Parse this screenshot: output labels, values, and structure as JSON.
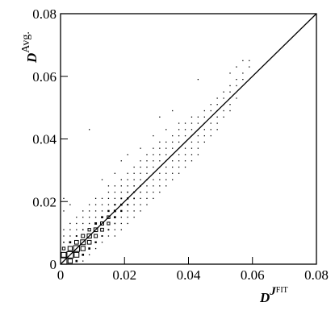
{
  "chart_data": {
    "type": "box2d",
    "x_label": "D",
    "x_label_sup": "J",
    "x_label_sup_sup": "FIT",
    "y_label": "D",
    "y_label_sup": "Avg.",
    "xlim": [
      0,
      0.08
    ],
    "ylim": [
      0,
      0.08
    ],
    "bin_width": 0.002,
    "xticks": [
      0,
      0.02,
      0.04,
      0.06,
      0.08
    ],
    "yticks": [
      0,
      0.02,
      0.04,
      0.06,
      0.08
    ],
    "diagonal": true,
    "color": "#000000",
    "cells": [
      [
        0.001,
        0.001,
        60
      ],
      [
        0.001,
        0.003,
        45
      ],
      [
        0.001,
        0.005,
        25
      ],
      [
        0.001,
        0.007,
        12
      ],
      [
        0.001,
        0.009,
        5
      ],
      [
        0.001,
        0.011,
        2
      ],
      [
        0.001,
        0.017,
        1
      ],
      [
        0.001,
        0.021,
        1
      ],
      [
        0.003,
        0.001,
        40
      ],
      [
        0.003,
        0.003,
        60
      ],
      [
        0.003,
        0.005,
        40
      ],
      [
        0.003,
        0.007,
        20
      ],
      [
        0.003,
        0.009,
        8
      ],
      [
        0.003,
        0.011,
        3
      ],
      [
        0.003,
        0.013,
        1
      ],
      [
        0.003,
        0.019,
        1
      ],
      [
        0.005,
        0.001,
        20
      ],
      [
        0.005,
        0.003,
        45
      ],
      [
        0.005,
        0.005,
        55
      ],
      [
        0.005,
        0.007,
        35
      ],
      [
        0.005,
        0.009,
        15
      ],
      [
        0.005,
        0.011,
        6
      ],
      [
        0.005,
        0.013,
        2
      ],
      [
        0.005,
        0.015,
        1
      ],
      [
        0.007,
        0.001,
        5
      ],
      [
        0.007,
        0.003,
        20
      ],
      [
        0.007,
        0.005,
        40
      ],
      [
        0.007,
        0.007,
        45
      ],
      [
        0.007,
        0.009,
        30
      ],
      [
        0.007,
        0.011,
        12
      ],
      [
        0.007,
        0.013,
        5
      ],
      [
        0.007,
        0.015,
        2
      ],
      [
        0.007,
        0.017,
        1
      ],
      [
        0.009,
        0.003,
        8
      ],
      [
        0.009,
        0.005,
        20
      ],
      [
        0.009,
        0.007,
        35
      ],
      [
        0.009,
        0.009,
        40
      ],
      [
        0.009,
        0.011,
        25
      ],
      [
        0.009,
        0.013,
        10
      ],
      [
        0.009,
        0.015,
        4
      ],
      [
        0.009,
        0.017,
        2
      ],
      [
        0.009,
        0.019,
        1
      ],
      [
        0.009,
        0.043,
        1
      ],
      [
        0.011,
        0.005,
        8
      ],
      [
        0.011,
        0.007,
        18
      ],
      [
        0.011,
        0.009,
        30
      ],
      [
        0.011,
        0.011,
        35
      ],
      [
        0.011,
        0.013,
        22
      ],
      [
        0.011,
        0.015,
        10
      ],
      [
        0.011,
        0.017,
        4
      ],
      [
        0.011,
        0.019,
        2
      ],
      [
        0.011,
        0.021,
        1
      ],
      [
        0.013,
        0.007,
        8
      ],
      [
        0.013,
        0.009,
        15
      ],
      [
        0.013,
        0.011,
        28
      ],
      [
        0.013,
        0.013,
        30
      ],
      [
        0.013,
        0.015,
        20
      ],
      [
        0.013,
        0.017,
        8
      ],
      [
        0.013,
        0.019,
        3
      ],
      [
        0.013,
        0.021,
        1
      ],
      [
        0.013,
        0.027,
        1
      ],
      [
        0.015,
        0.009,
        6
      ],
      [
        0.015,
        0.011,
        14
      ],
      [
        0.015,
        0.013,
        24
      ],
      [
        0.015,
        0.015,
        26
      ],
      [
        0.015,
        0.017,
        18
      ],
      [
        0.015,
        0.019,
        8
      ],
      [
        0.015,
        0.021,
        3
      ],
      [
        0.015,
        0.023,
        2
      ],
      [
        0.015,
        0.025,
        1
      ],
      [
        0.017,
        0.009,
        2
      ],
      [
        0.017,
        0.011,
        6
      ],
      [
        0.017,
        0.013,
        12
      ],
      [
        0.017,
        0.015,
        20
      ],
      [
        0.017,
        0.017,
        22
      ],
      [
        0.017,
        0.019,
        16
      ],
      [
        0.017,
        0.021,
        8
      ],
      [
        0.017,
        0.023,
        3
      ],
      [
        0.017,
        0.025,
        1
      ],
      [
        0.017,
        0.029,
        1
      ],
      [
        0.019,
        0.011,
        2
      ],
      [
        0.019,
        0.013,
        5
      ],
      [
        0.019,
        0.015,
        10
      ],
      [
        0.019,
        0.017,
        18
      ],
      [
        0.019,
        0.019,
        20
      ],
      [
        0.019,
        0.021,
        14
      ],
      [
        0.019,
        0.023,
        7
      ],
      [
        0.019,
        0.025,
        3
      ],
      [
        0.019,
        0.027,
        1
      ],
      [
        0.019,
        0.033,
        1
      ],
      [
        0.021,
        0.013,
        2
      ],
      [
        0.021,
        0.015,
        5
      ],
      [
        0.021,
        0.017,
        9
      ],
      [
        0.021,
        0.019,
        15
      ],
      [
        0.021,
        0.021,
        18
      ],
      [
        0.021,
        0.023,
        12
      ],
      [
        0.021,
        0.025,
        6
      ],
      [
        0.021,
        0.027,
        3
      ],
      [
        0.021,
        0.029,
        1
      ],
      [
        0.021,
        0.035,
        1
      ],
      [
        0.023,
        0.015,
        2
      ],
      [
        0.023,
        0.017,
        4
      ],
      [
        0.023,
        0.019,
        8
      ],
      [
        0.023,
        0.021,
        13
      ],
      [
        0.023,
        0.023,
        15
      ],
      [
        0.023,
        0.025,
        11
      ],
      [
        0.023,
        0.027,
        5
      ],
      [
        0.023,
        0.029,
        2
      ],
      [
        0.023,
        0.031,
        1
      ],
      [
        0.025,
        0.017,
        2
      ],
      [
        0.025,
        0.019,
        4
      ],
      [
        0.025,
        0.021,
        7
      ],
      [
        0.025,
        0.023,
        11
      ],
      [
        0.025,
        0.025,
        13
      ],
      [
        0.025,
        0.027,
        9
      ],
      [
        0.025,
        0.029,
        5
      ],
      [
        0.025,
        0.031,
        2
      ],
      [
        0.025,
        0.033,
        1
      ],
      [
        0.025,
        0.037,
        1
      ],
      [
        0.027,
        0.019,
        2
      ],
      [
        0.027,
        0.021,
        3
      ],
      [
        0.027,
        0.023,
        6
      ],
      [
        0.027,
        0.025,
        9
      ],
      [
        0.027,
        0.027,
        11
      ],
      [
        0.027,
        0.029,
        8
      ],
      [
        0.027,
        0.031,
        4
      ],
      [
        0.027,
        0.033,
        2
      ],
      [
        0.027,
        0.035,
        1
      ],
      [
        0.029,
        0.021,
        2
      ],
      [
        0.029,
        0.023,
        3
      ],
      [
        0.029,
        0.025,
        5
      ],
      [
        0.029,
        0.027,
        8
      ],
      [
        0.029,
        0.029,
        10
      ],
      [
        0.029,
        0.031,
        7
      ],
      [
        0.029,
        0.033,
        4
      ],
      [
        0.029,
        0.035,
        2
      ],
      [
        0.029,
        0.037,
        1
      ],
      [
        0.029,
        0.041,
        1
      ],
      [
        0.031,
        0.023,
        2
      ],
      [
        0.031,
        0.025,
        3
      ],
      [
        0.031,
        0.027,
        5
      ],
      [
        0.031,
        0.029,
        7
      ],
      [
        0.031,
        0.031,
        8
      ],
      [
        0.031,
        0.033,
        6
      ],
      [
        0.031,
        0.035,
        3
      ],
      [
        0.031,
        0.037,
        2
      ],
      [
        0.031,
        0.039,
        1
      ],
      [
        0.031,
        0.047,
        1
      ],
      [
        0.033,
        0.025,
        2
      ],
      [
        0.033,
        0.027,
        3
      ],
      [
        0.033,
        0.029,
        4
      ],
      [
        0.033,
        0.031,
        6
      ],
      [
        0.033,
        0.033,
        7
      ],
      [
        0.033,
        0.035,
        5
      ],
      [
        0.033,
        0.037,
        3
      ],
      [
        0.033,
        0.039,
        1
      ],
      [
        0.033,
        0.043,
        1
      ],
      [
        0.035,
        0.027,
        1
      ],
      [
        0.035,
        0.029,
        3
      ],
      [
        0.035,
        0.031,
        4
      ],
      [
        0.035,
        0.033,
        5
      ],
      [
        0.035,
        0.035,
        6
      ],
      [
        0.035,
        0.037,
        4
      ],
      [
        0.035,
        0.039,
        2
      ],
      [
        0.035,
        0.041,
        1
      ],
      [
        0.035,
        0.049,
        1
      ],
      [
        0.037,
        0.029,
        1
      ],
      [
        0.037,
        0.031,
        2
      ],
      [
        0.037,
        0.033,
        3
      ],
      [
        0.037,
        0.035,
        4
      ],
      [
        0.037,
        0.037,
        5
      ],
      [
        0.037,
        0.039,
        4
      ],
      [
        0.037,
        0.041,
        2
      ],
      [
        0.037,
        0.043,
        1
      ],
      [
        0.037,
        0.045,
        1
      ],
      [
        0.039,
        0.031,
        1
      ],
      [
        0.039,
        0.033,
        2
      ],
      [
        0.039,
        0.035,
        3
      ],
      [
        0.039,
        0.037,
        4
      ],
      [
        0.039,
        0.039,
        4
      ],
      [
        0.039,
        0.041,
        3
      ],
      [
        0.039,
        0.043,
        2
      ],
      [
        0.039,
        0.045,
        1
      ],
      [
        0.041,
        0.033,
        1
      ],
      [
        0.041,
        0.035,
        2
      ],
      [
        0.041,
        0.037,
        3
      ],
      [
        0.041,
        0.039,
        3
      ],
      [
        0.041,
        0.041,
        4
      ],
      [
        0.041,
        0.043,
        3
      ],
      [
        0.041,
        0.045,
        2
      ],
      [
        0.041,
        0.047,
        1
      ],
      [
        0.043,
        0.035,
        1
      ],
      [
        0.043,
        0.037,
        1
      ],
      [
        0.043,
        0.039,
        2
      ],
      [
        0.043,
        0.041,
        3
      ],
      [
        0.043,
        0.043,
        3
      ],
      [
        0.043,
        0.045,
        2
      ],
      [
        0.043,
        0.047,
        1
      ],
      [
        0.043,
        0.059,
        1
      ],
      [
        0.045,
        0.039,
        1
      ],
      [
        0.045,
        0.041,
        2
      ],
      [
        0.045,
        0.043,
        2
      ],
      [
        0.045,
        0.045,
        3
      ],
      [
        0.045,
        0.047,
        2
      ],
      [
        0.045,
        0.049,
        1
      ],
      [
        0.047,
        0.041,
        1
      ],
      [
        0.047,
        0.043,
        1
      ],
      [
        0.047,
        0.045,
        2
      ],
      [
        0.047,
        0.047,
        2
      ],
      [
        0.047,
        0.049,
        2
      ],
      [
        0.047,
        0.051,
        1
      ],
      [
        0.049,
        0.043,
        1
      ],
      [
        0.049,
        0.045,
        1
      ],
      [
        0.049,
        0.047,
        1
      ],
      [
        0.049,
        0.049,
        2
      ],
      [
        0.049,
        0.051,
        1
      ],
      [
        0.049,
        0.053,
        1
      ],
      [
        0.051,
        0.047,
        1
      ],
      [
        0.051,
        0.049,
        1
      ],
      [
        0.051,
        0.051,
        1
      ],
      [
        0.051,
        0.053,
        1
      ],
      [
        0.051,
        0.055,
        1
      ],
      [
        0.053,
        0.049,
        1
      ],
      [
        0.053,
        0.051,
        1
      ],
      [
        0.053,
        0.053,
        1
      ],
      [
        0.053,
        0.055,
        1
      ],
      [
        0.053,
        0.057,
        1
      ],
      [
        0.053,
        0.061,
        1
      ],
      [
        0.055,
        0.053,
        1
      ],
      [
        0.055,
        0.057,
        1
      ],
      [
        0.055,
        0.059,
        1
      ],
      [
        0.055,
        0.063,
        1
      ],
      [
        0.057,
        0.059,
        1
      ],
      [
        0.057,
        0.061,
        1
      ],
      [
        0.057,
        0.065,
        1
      ],
      [
        0.059,
        0.063,
        1
      ],
      [
        0.059,
        0.065,
        1
      ]
    ]
  }
}
